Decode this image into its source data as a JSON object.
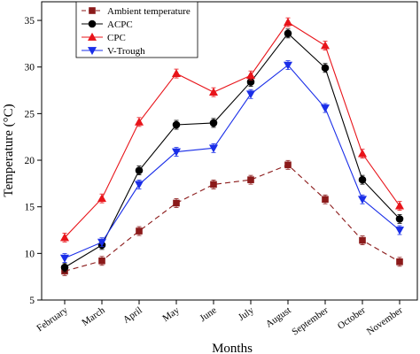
{
  "chart_data": {
    "type": "line",
    "title": "",
    "xlabel": "Months",
    "ylabel": "Temperature (°C)",
    "categories": [
      "February",
      "March",
      "April",
      "May",
      "June",
      "July",
      "August",
      "September",
      "October",
      "November"
    ],
    "ylim": [
      5,
      37
    ],
    "yticks": [
      5,
      10,
      15,
      20,
      25,
      30,
      35
    ],
    "grid": false,
    "legend_position": "top-left",
    "series": [
      {
        "name": "Ambient temperature",
        "color": "#8b1a1a",
        "line_style": "dashed",
        "marker": "square",
        "values": [
          8.1,
          9.2,
          12.4,
          15.4,
          17.4,
          17.9,
          19.5,
          15.8,
          11.4,
          9.1
        ]
      },
      {
        "name": "ACPC",
        "color": "#000000",
        "line_style": "solid",
        "marker": "circle",
        "values": [
          8.5,
          10.9,
          18.9,
          23.8,
          24.0,
          28.4,
          33.6,
          29.9,
          17.9,
          13.7
        ]
      },
      {
        "name": "CPC",
        "color": "#e8141a",
        "line_style": "solid",
        "marker": "triangle-up",
        "values": [
          11.7,
          15.9,
          24.1,
          29.3,
          27.3,
          29.1,
          34.8,
          32.3,
          20.7,
          15.1
        ]
      },
      {
        "name": "V-Trough",
        "color": "#1a2ee8",
        "line_style": "solid",
        "marker": "triangle-down",
        "values": [
          9.5,
          11.2,
          17.4,
          20.9,
          21.3,
          27.1,
          30.2,
          25.6,
          15.8,
          12.5
        ]
      }
    ]
  }
}
